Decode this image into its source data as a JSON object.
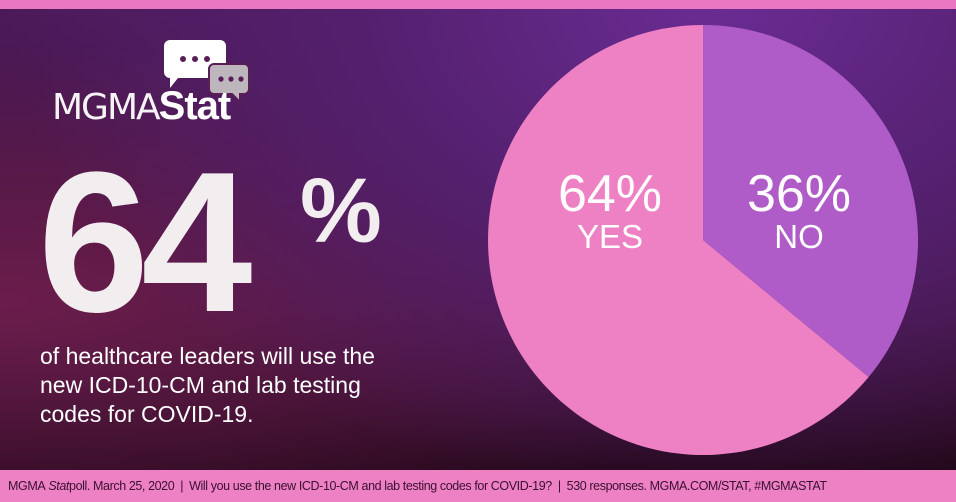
{
  "brand": {
    "logo_text_thin": "MGMA",
    "logo_text_bold": "Stat"
  },
  "headline": {
    "value": "64",
    "percent_sign": "%",
    "description": "of healthcare leaders will use the new ICD-10-CM and lab testing codes for COVID-19."
  },
  "footer": {
    "source_prefix": "MGMA ",
    "source_italic": "Stat",
    "source_suffix": " poll. March 25, 2020",
    "separator": "|",
    "question": "Will you use the new ICD-10-CM and lab testing codes for COVID-19?",
    "responses": "530 responses. MGMA.COM/STAT, #MGMASTAT"
  },
  "colors": {
    "yes": "#ee80c4",
    "no": "#b05cc8",
    "accent": "#e978c0"
  },
  "chart_data": {
    "type": "pie",
    "title": "",
    "categories": [
      "YES",
      "NO"
    ],
    "values": [
      64,
      36
    ],
    "labels": [
      "64%",
      "36%"
    ]
  }
}
